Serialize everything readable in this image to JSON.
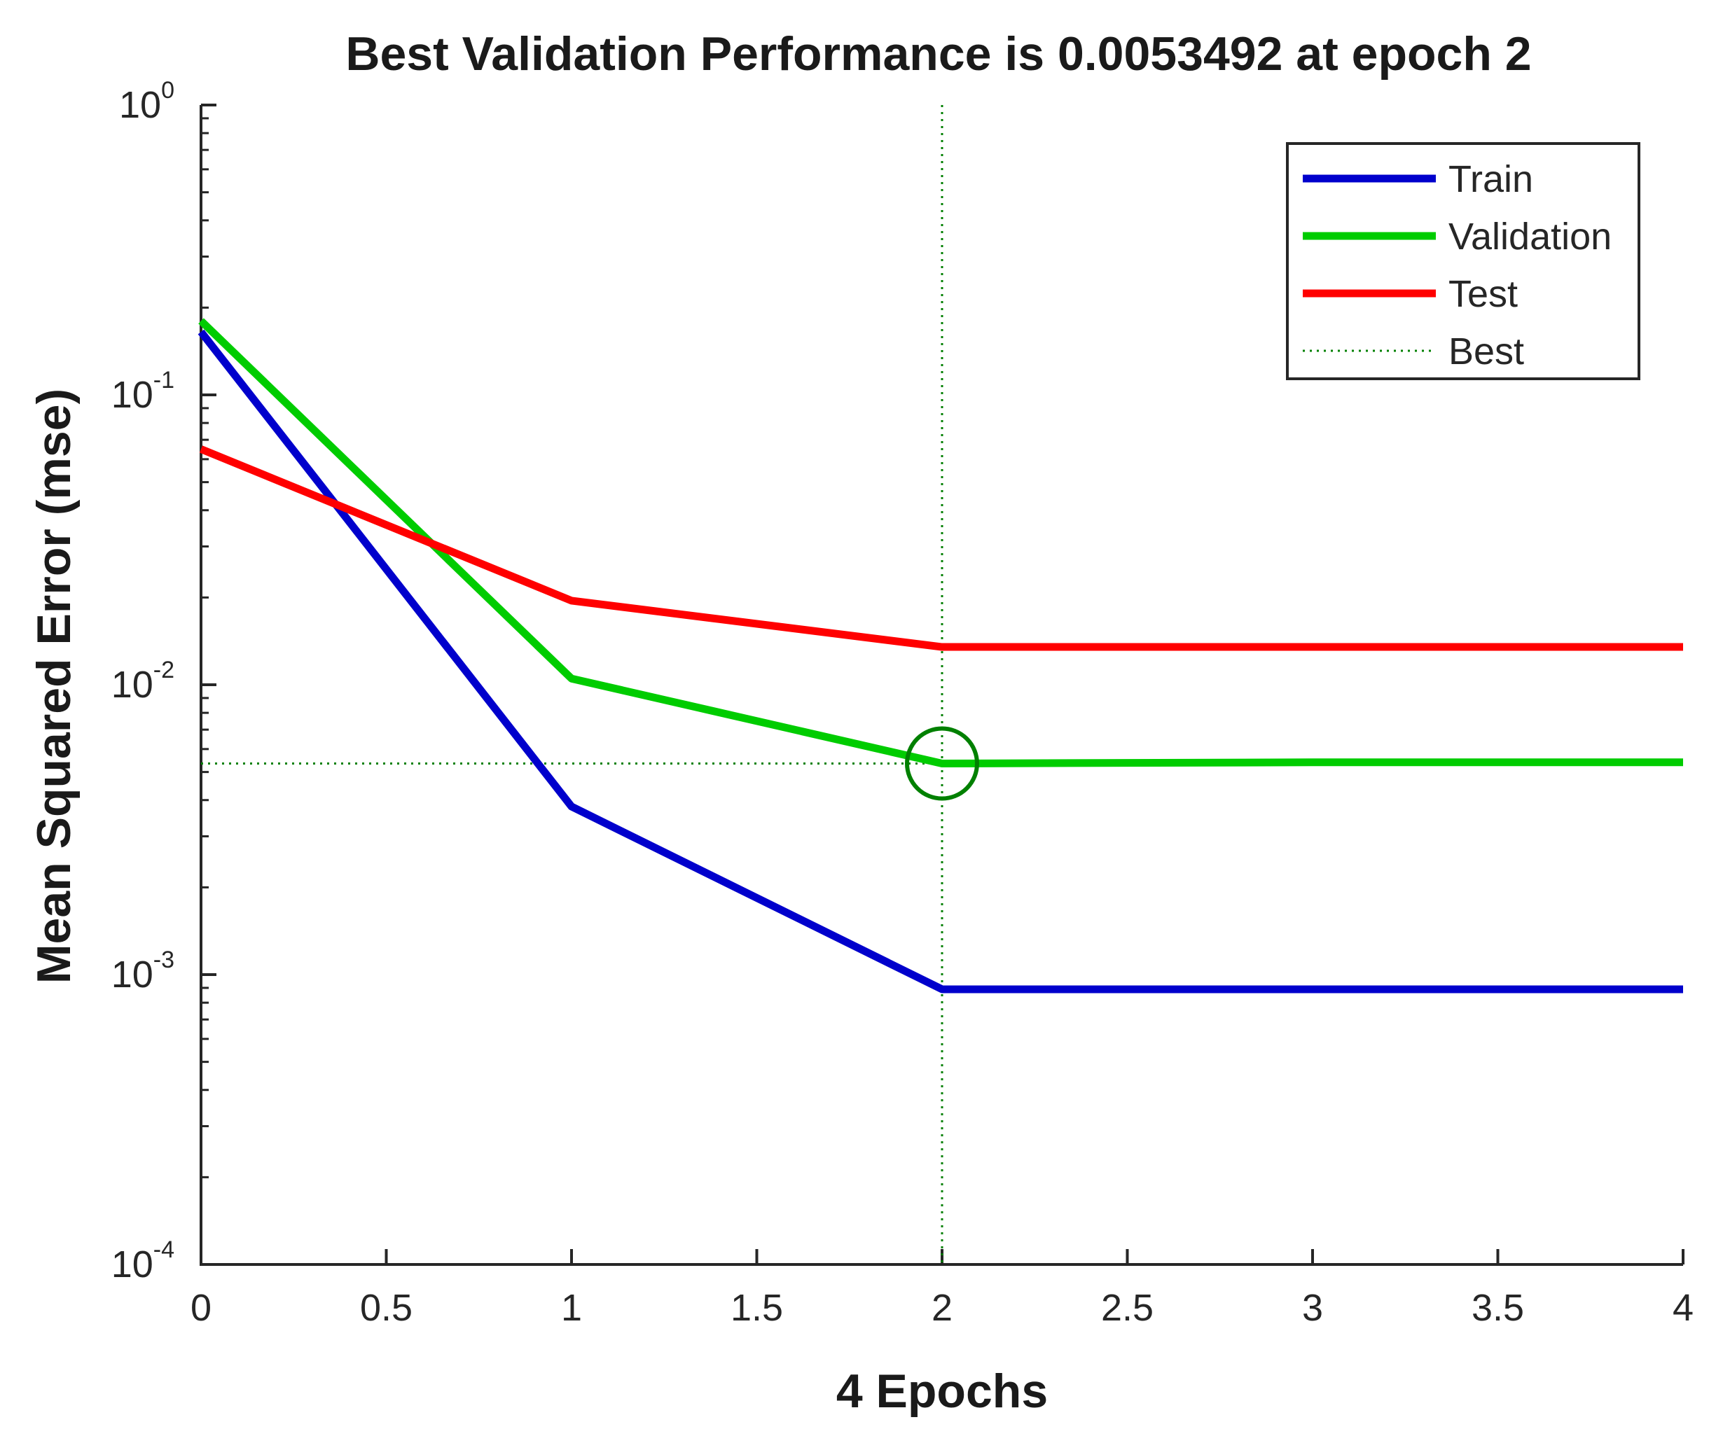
{
  "chart_data": {
    "type": "line",
    "title": "Best Validation Performance is 0.0053492 at epoch 2",
    "xlabel": "4 Epochs",
    "ylabel": "Mean Squared Error  (mse)",
    "yscale": "log",
    "xlim": [
      0,
      4
    ],
    "ylim": [
      0.0001,
      1
    ],
    "x_ticks": [
      0,
      0.5,
      1,
      1.5,
      2,
      2.5,
      3,
      3.5,
      4
    ],
    "x_tick_labels": [
      "0",
      "0.5",
      "1",
      "1.5",
      "2",
      "2.5",
      "3",
      "3.5",
      "4"
    ],
    "y_ticks": [
      0.0001,
      0.001,
      0.01,
      0.1,
      1
    ],
    "y_tick_labels": [
      {
        "base": "10",
        "exp": "-4"
      },
      {
        "base": "10",
        "exp": "-3"
      },
      {
        "base": "10",
        "exp": "-2"
      },
      {
        "base": "10",
        "exp": "-1"
      },
      {
        "base": "10",
        "exp": "0"
      }
    ],
    "x": [
      0,
      1,
      2,
      3,
      4
    ],
    "series": [
      {
        "name": "Train",
        "color": "#0000cc",
        "values": [
          0.165,
          0.0038,
          0.00089,
          0.00089,
          0.00089
        ]
      },
      {
        "name": "Validation",
        "color": "#00cc00",
        "values": [
          0.18,
          0.0105,
          0.0053492,
          0.0054,
          0.0054
        ]
      },
      {
        "name": "Test",
        "color": "#ff0000",
        "values": [
          0.065,
          0.0195,
          0.0135,
          0.0135,
          0.0135
        ]
      }
    ],
    "best": {
      "name": "Best",
      "epoch": 2,
      "value": 0.0053492,
      "color": "#008000"
    },
    "legend_position": "top-right",
    "grid": false
  }
}
